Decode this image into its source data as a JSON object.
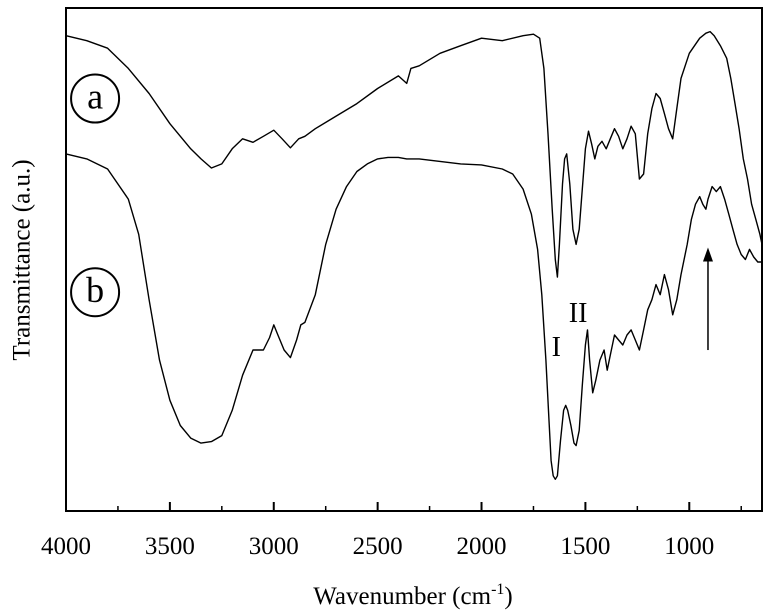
{
  "chart_data": {
    "type": "line",
    "xlabel": "Wavenumber (cm",
    "xlabel_sup": "-1",
    "xlabel_suffix": ")",
    "ylabel": "Transmittance (a.u.)",
    "xlim": [
      4000,
      650
    ],
    "ylim": [
      0,
      1
    ],
    "x_reversed": true,
    "grid": false,
    "x_ticks": [
      4000,
      3500,
      3000,
      2500,
      2000,
      1500,
      1000
    ],
    "annotations": {
      "band_I": "I",
      "band_II": "II",
      "arrow_x": 910
    },
    "series": [
      {
        "name": "a",
        "color": "#000000",
        "points": [
          [
            4000,
            0.945
          ],
          [
            3900,
            0.935
          ],
          [
            3800,
            0.92
          ],
          [
            3700,
            0.88
          ],
          [
            3600,
            0.83
          ],
          [
            3500,
            0.77
          ],
          [
            3400,
            0.72
          ],
          [
            3350,
            0.7
          ],
          [
            3300,
            0.682
          ],
          [
            3250,
            0.69
          ],
          [
            3200,
            0.72
          ],
          [
            3150,
            0.74
          ],
          [
            3100,
            0.733
          ],
          [
            3050,
            0.745
          ],
          [
            3000,
            0.757
          ],
          [
            2960,
            0.74
          ],
          [
            2920,
            0.722
          ],
          [
            2880,
            0.74
          ],
          [
            2850,
            0.745
          ],
          [
            2800,
            0.76
          ],
          [
            2700,
            0.785
          ],
          [
            2600,
            0.81
          ],
          [
            2500,
            0.84
          ],
          [
            2400,
            0.865
          ],
          [
            2360,
            0.85
          ],
          [
            2340,
            0.88
          ],
          [
            2300,
            0.885
          ],
          [
            2200,
            0.91
          ],
          [
            2100,
            0.925
          ],
          [
            2000,
            0.94
          ],
          [
            1900,
            0.935
          ],
          [
            1800,
            0.945
          ],
          [
            1750,
            0.948
          ],
          [
            1720,
            0.94
          ],
          [
            1700,
            0.88
          ],
          [
            1680,
            0.75
          ],
          [
            1660,
            0.6
          ],
          [
            1645,
            0.5
          ],
          [
            1635,
            0.465
          ],
          [
            1625,
            0.53
          ],
          [
            1610,
            0.65
          ],
          [
            1600,
            0.7
          ],
          [
            1590,
            0.71
          ],
          [
            1575,
            0.65
          ],
          [
            1560,
            0.56
          ],
          [
            1545,
            0.53
          ],
          [
            1530,
            0.56
          ],
          [
            1515,
            0.64
          ],
          [
            1500,
            0.72
          ],
          [
            1485,
            0.755
          ],
          [
            1470,
            0.73
          ],
          [
            1455,
            0.7
          ],
          [
            1440,
            0.725
          ],
          [
            1420,
            0.735
          ],
          [
            1400,
            0.72
          ],
          [
            1380,
            0.74
          ],
          [
            1360,
            0.76
          ],
          [
            1340,
            0.745
          ],
          [
            1320,
            0.72
          ],
          [
            1300,
            0.74
          ],
          [
            1280,
            0.765
          ],
          [
            1260,
            0.75
          ],
          [
            1240,
            0.66
          ],
          [
            1220,
            0.67
          ],
          [
            1200,
            0.75
          ],
          [
            1180,
            0.8
          ],
          [
            1160,
            0.83
          ],
          [
            1140,
            0.82
          ],
          [
            1120,
            0.79
          ],
          [
            1100,
            0.76
          ],
          [
            1080,
            0.74
          ],
          [
            1060,
            0.8
          ],
          [
            1040,
            0.86
          ],
          [
            1000,
            0.91
          ],
          [
            950,
            0.94
          ],
          [
            920,
            0.95
          ],
          [
            900,
            0.953
          ],
          [
            880,
            0.945
          ],
          [
            850,
            0.925
          ],
          [
            820,
            0.9
          ],
          [
            800,
            0.86
          ],
          [
            780,
            0.81
          ],
          [
            760,
            0.76
          ],
          [
            740,
            0.7
          ],
          [
            720,
            0.66
          ],
          [
            700,
            0.61
          ],
          [
            680,
            0.58
          ],
          [
            660,
            0.55
          ],
          [
            650,
            0.53
          ]
        ]
      },
      {
        "name": "b",
        "color": "#000000",
        "points": [
          [
            4000,
            0.71
          ],
          [
            3900,
            0.7
          ],
          [
            3800,
            0.68
          ],
          [
            3700,
            0.62
          ],
          [
            3650,
            0.55
          ],
          [
            3600,
            0.42
          ],
          [
            3550,
            0.3
          ],
          [
            3500,
            0.22
          ],
          [
            3450,
            0.17
          ],
          [
            3400,
            0.145
          ],
          [
            3350,
            0.135
          ],
          [
            3300,
            0.138
          ],
          [
            3250,
            0.15
          ],
          [
            3200,
            0.2
          ],
          [
            3150,
            0.27
          ],
          [
            3100,
            0.32
          ],
          [
            3050,
            0.32
          ],
          [
            3020,
            0.345
          ],
          [
            3000,
            0.37
          ],
          [
            2980,
            0.35
          ],
          [
            2950,
            0.32
          ],
          [
            2920,
            0.305
          ],
          [
            2890,
            0.34
          ],
          [
            2870,
            0.37
          ],
          [
            2850,
            0.375
          ],
          [
            2800,
            0.43
          ],
          [
            2750,
            0.53
          ],
          [
            2700,
            0.6
          ],
          [
            2650,
            0.645
          ],
          [
            2600,
            0.675
          ],
          [
            2550,
            0.69
          ],
          [
            2500,
            0.7
          ],
          [
            2450,
            0.703
          ],
          [
            2400,
            0.703
          ],
          [
            2360,
            0.7
          ],
          [
            2300,
            0.7
          ],
          [
            2200,
            0.695
          ],
          [
            2100,
            0.69
          ],
          [
            2000,
            0.688
          ],
          [
            1900,
            0.68
          ],
          [
            1850,
            0.67
          ],
          [
            1800,
            0.64
          ],
          [
            1760,
            0.59
          ],
          [
            1730,
            0.52
          ],
          [
            1710,
            0.43
          ],
          [
            1690,
            0.3
          ],
          [
            1675,
            0.18
          ],
          [
            1665,
            0.1
          ],
          [
            1655,
            0.07
          ],
          [
            1645,
            0.063
          ],
          [
            1635,
            0.07
          ],
          [
            1620,
            0.14
          ],
          [
            1605,
            0.2
          ],
          [
            1595,
            0.21
          ],
          [
            1585,
            0.2
          ],
          [
            1570,
            0.17
          ],
          [
            1555,
            0.135
          ],
          [
            1545,
            0.13
          ],
          [
            1530,
            0.16
          ],
          [
            1515,
            0.25
          ],
          [
            1500,
            0.33
          ],
          [
            1490,
            0.36
          ],
          [
            1480,
            0.3
          ],
          [
            1465,
            0.235
          ],
          [
            1450,
            0.26
          ],
          [
            1430,
            0.3
          ],
          [
            1410,
            0.32
          ],
          [
            1395,
            0.28
          ],
          [
            1380,
            0.31
          ],
          [
            1360,
            0.35
          ],
          [
            1340,
            0.34
          ],
          [
            1320,
            0.33
          ],
          [
            1300,
            0.35
          ],
          [
            1280,
            0.36
          ],
          [
            1260,
            0.34
          ],
          [
            1240,
            0.32
          ],
          [
            1220,
            0.36
          ],
          [
            1200,
            0.4
          ],
          [
            1180,
            0.42
          ],
          [
            1160,
            0.45
          ],
          [
            1140,
            0.43
          ],
          [
            1120,
            0.47
          ],
          [
            1100,
            0.44
          ],
          [
            1080,
            0.39
          ],
          [
            1060,
            0.42
          ],
          [
            1040,
            0.47
          ],
          [
            1010,
            0.53
          ],
          [
            990,
            0.58
          ],
          [
            970,
            0.61
          ],
          [
            950,
            0.625
          ],
          [
            935,
            0.61
          ],
          [
            920,
            0.6
          ],
          [
            910,
            0.62
          ],
          [
            890,
            0.645
          ],
          [
            870,
            0.635
          ],
          [
            850,
            0.645
          ],
          [
            830,
            0.62
          ],
          [
            810,
            0.59
          ],
          [
            790,
            0.56
          ],
          [
            770,
            0.53
          ],
          [
            750,
            0.51
          ],
          [
            730,
            0.5
          ],
          [
            710,
            0.52
          ],
          [
            690,
            0.505
          ],
          [
            670,
            0.495
          ],
          [
            650,
            0.495
          ]
        ]
      }
    ]
  }
}
